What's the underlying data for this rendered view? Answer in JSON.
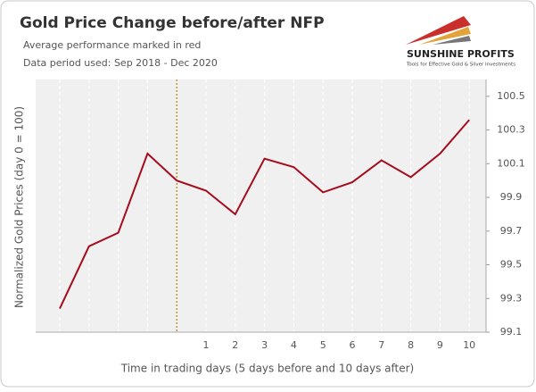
{
  "chart_data": {
    "type": "line",
    "title": "Gold Price Change before/after NFP",
    "subtitle": "Average performance marked in red",
    "note": "Data period used: Sep 2018 - Dec 2020",
    "brand": "SUNSHINE PROFITS",
    "brand_tagline": "Tools for Effective Gold & Silver Investments",
    "x_label": "Time in trading days  (5 days before and 10 days after)",
    "y_label": "Normalized Gold Prices (day 0 = 100)",
    "categories": [
      null,
      null,
      null,
      null,
      null,
      "1",
      "2",
      "3",
      "4",
      "5",
      "6",
      "7",
      "8",
      "9",
      "10"
    ],
    "series": [
      {
        "name": "Average performance",
        "color": "#a50d1e",
        "values": [
          99.24,
          99.61,
          99.69,
          100.16,
          100.0,
          99.94,
          99.8,
          100.13,
          100.08,
          99.93,
          99.99,
          100.12,
          100.02,
          100.16,
          100.36
        ]
      }
    ],
    "ylim": [
      99.1,
      100.6
    ],
    "yticks": [
      99.1,
      99.3,
      99.5,
      99.7,
      99.9,
      100.1,
      100.3,
      100.5
    ],
    "grid": true
  }
}
